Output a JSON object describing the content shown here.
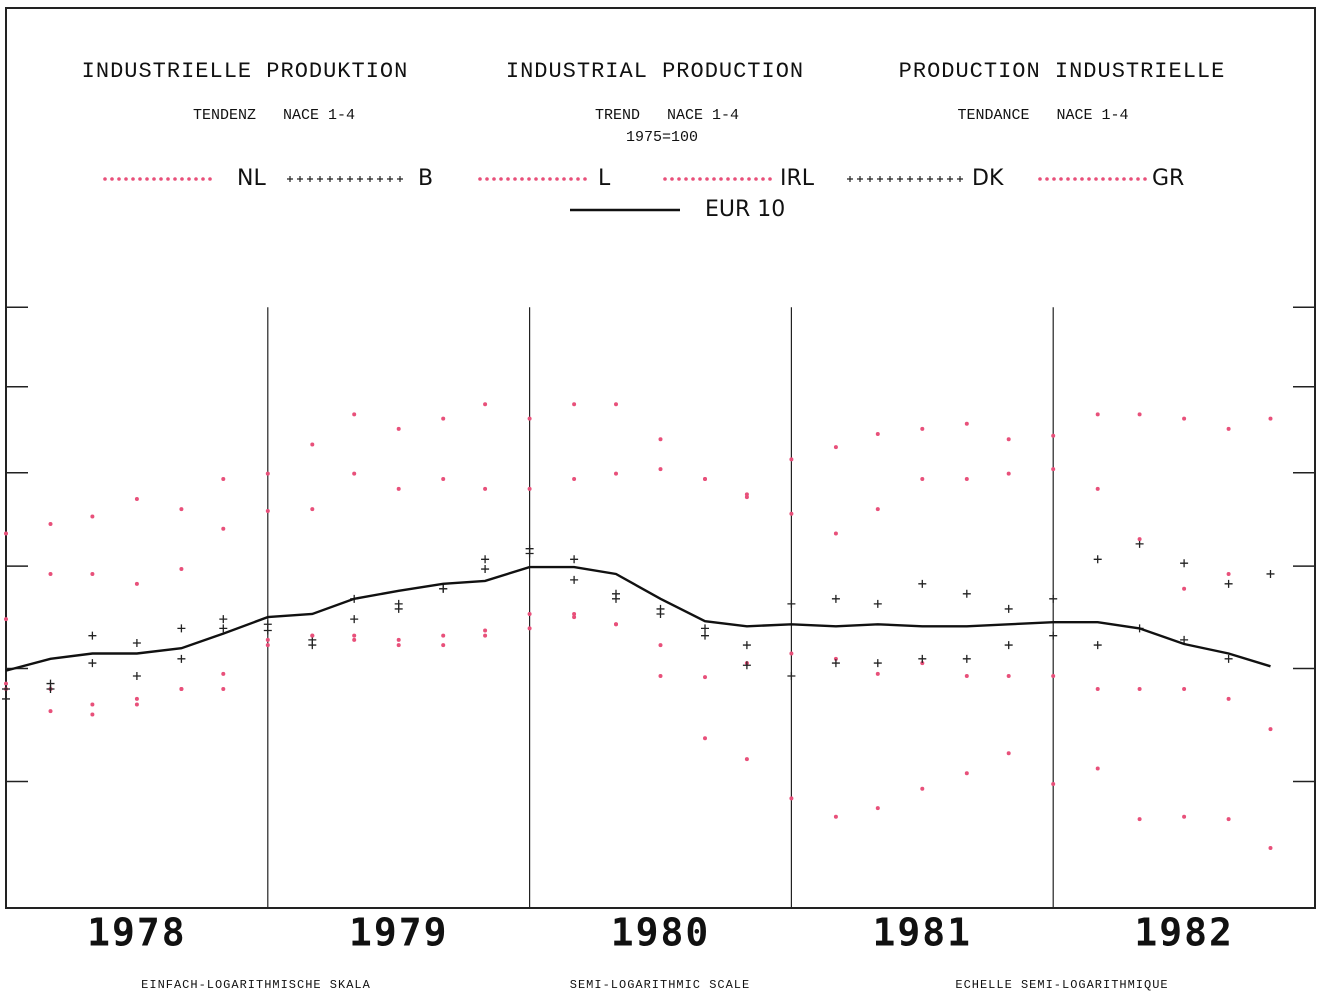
{
  "chart_data": {
    "type": "line",
    "titles": [
      "INDUSTRIELLE PRODUKTION",
      "INDUSTRIAL PRODUCTION",
      "PRODUCTION INDUSTRIELLE"
    ],
    "subtitles": [
      "TENDENZ   NACE 1-4",
      "TREND   NACE 1-4",
      "TENDANCE   NACE 1-4"
    ],
    "base_note": "1975=100",
    "footers": [
      "EINFACH-LOGARITHMISCHE SKALA",
      "SEMI-LOGARITHMIC SCALE",
      "ECHELLE SEMI-LOGARITHMIQUE"
    ],
    "log_scale": true,
    "xlim": [
      1978,
      1983
    ],
    "xticks": [
      1978,
      1979,
      1980,
      1981,
      1982
    ],
    "ylim": [
      80,
      185
    ],
    "yticks": [
      90,
      100,
      110,
      120,
      130,
      140
    ],
    "x": [
      1978,
      1978.17,
      1978.33,
      1978.5,
      1978.67,
      1978.83,
      1979,
      1979.17,
      1979.33,
      1979.5,
      1979.67,
      1979.83,
      1980,
      1980.17,
      1980.33,
      1980.5,
      1980.67,
      1980.83,
      1981,
      1981.17,
      1981.33,
      1981.5,
      1981.67,
      1981.83,
      1982,
      1982.17,
      1982.33,
      1982.5,
      1982.67,
      1982.83
    ],
    "series": [
      {
        "name": "NL",
        "color": "#e8507a",
        "marker": "dot",
        "values": [
          98.6,
          98.1,
          96.7,
          97.2,
          98.1,
          98.1,
          102.7,
          103.1,
          102.7,
          102.2,
          102.2,
          103.1,
          103.8,
          105.2,
          104.2,
          102.2,
          99.2,
          100.5,
          101.4,
          100.9,
          99.5,
          100.5,
          99.3,
          99.3,
          99.3,
          98.1,
          98.1,
          98.1,
          97.2,
          94.5
        ]
      },
      {
        "name": "B",
        "color": "#222222",
        "marker": "cross",
        "values": [
          97.2,
          98.1,
          100.5,
          99.3,
          100.9,
          103.8,
          104.2,
          102.7,
          106.7,
          105.7,
          107.7,
          109.7,
          111.8,
          110.7,
          107.2,
          105.7,
          103.1,
          100.3,
          99.3,
          100.5,
          100.5,
          100.9,
          100.9,
          102.2,
          103.1,
          102.2,
          103.8,
          102.7,
          100.9,
          null
        ]
      },
      {
        "name": "L",
        "color": "#e8507a",
        "marker": "dot",
        "values": [
          98.1,
          96.1,
          95.8,
          96.7,
          98.1,
          99.5,
          102.2,
          103.1,
          103.1,
          102.7,
          103.1,
          103.6,
          105.2,
          104.9,
          104.2,
          99.3,
          93.7,
          91.9,
          88.6,
          87.1,
          87.8,
          89.4,
          90.7,
          92.4,
          89.8,
          91.1,
          86.9,
          87.1,
          86.9,
          84.6
        ]
      },
      {
        "name": "IRL",
        "color": "#e8507a",
        "marker": "dot",
        "values": [
          113.4,
          114.4,
          115.2,
          117.1,
          116.0,
          119.3,
          119.9,
          123.2,
          126.7,
          125.0,
          126.2,
          127.9,
          126.2,
          127.9,
          127.9,
          123.8,
          119.3,
          117.6,
          121.5,
          122.9,
          124.4,
          125.0,
          125.6,
          123.8,
          124.2,
          126.7,
          126.7,
          126.2,
          125.0,
          126.2
        ]
      },
      {
        "name": "DK",
        "color": "#222222",
        "marker": "cross",
        "values": [
          98.1,
          98.6,
          103.1,
          102.4,
          103.8,
          104.7,
          103.6,
          102.2,
          104.7,
          106.2,
          107.7,
          110.7,
          111.3,
          108.6,
          106.7,
          105.2,
          103.8,
          102.2,
          106.2,
          106.7,
          106.2,
          108.2,
          107.2,
          105.7,
          106.7,
          110.7,
          112.3,
          110.3,
          108.2,
          109.2
        ]
      },
      {
        "name": "GR",
        "color": "#e8507a",
        "marker": "dot",
        "values": [
          104.7,
          109.2,
          109.2,
          108.2,
          109.7,
          113.9,
          115.8,
          116.0,
          119.9,
          118.2,
          119.3,
          118.2,
          118.2,
          119.3,
          119.9,
          120.4,
          119.3,
          117.3,
          115.5,
          113.4,
          116.0,
          119.3,
          119.3,
          119.9,
          120.4,
          118.2,
          112.8,
          107.7,
          109.2,
          null
        ]
      },
      {
        "name": "EUR 10",
        "color": "#111111",
        "marker": "line",
        "values": [
          99.8,
          100.9,
          101.4,
          101.4,
          101.9,
          103.3,
          104.9,
          105.2,
          106.7,
          107.5,
          108.2,
          108.5,
          109.9,
          109.9,
          109.2,
          106.7,
          104.5,
          104.0,
          104.2,
          104.0,
          104.2,
          104.0,
          104.0,
          104.2,
          104.4,
          104.4,
          103.8,
          102.3,
          101.4,
          100.2
        ]
      }
    ]
  }
}
